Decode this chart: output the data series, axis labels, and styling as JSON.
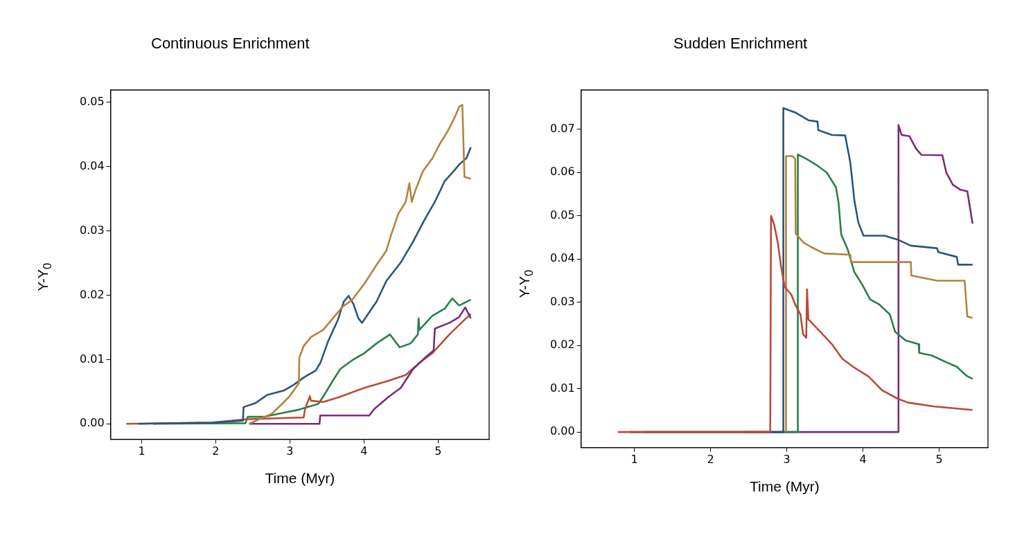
{
  "chart_data": [
    {
      "type": "line",
      "title": "Continuous Enrichment",
      "xlabel": "Time (Myr)",
      "ylabel": "Y-Y$_{0}$",
      "xlim": [
        0.58,
        5.69
      ],
      "ylim": [
        -0.0024,
        0.0519
      ],
      "xticks": [
        1,
        2,
        3,
        4,
        5
      ],
      "yticks": [
        {
          "value": 0,
          "label": "0.00"
        },
        {
          "value": 0.01,
          "label": "0.01"
        },
        {
          "value": 0.02,
          "label": "0.02"
        },
        {
          "value": 0.03,
          "label": "0.03"
        },
        {
          "value": 0.04,
          "label": "0.04"
        },
        {
          "value": 0.05,
          "label": "0.05"
        }
      ],
      "series": [
        {
          "color": "#b5823a",
          "x": [
            2.45,
            2.761,
            2.859,
            2.99,
            3.121,
            3.128,
            3.187,
            3.285,
            3.449,
            3.58,
            3.711,
            3.843,
            4.007,
            4.17,
            4.302,
            4.367,
            4.466,
            4.564,
            4.613,
            4.646,
            4.695,
            4.793,
            4.925,
            5.023,
            5.121,
            5.22,
            5.285,
            5.328,
            5.357,
            5.443
          ],
          "values": [
            0,
            0.0016,
            0.0027,
            0.0042,
            0.0063,
            0.0103,
            0.0121,
            0.0135,
            0.0146,
            0.0164,
            0.0182,
            0.0193,
            0.0218,
            0.0247,
            0.0269,
            0.0294,
            0.0327,
            0.0345,
            0.0374,
            0.0345,
            0.0363,
            0.0392,
            0.0413,
            0.0435,
            0.0453,
            0.0475,
            0.0493,
            0.0496,
            0.0384,
            0.0381
          ]
        },
        {
          "color": "#2b557a",
          "x": [
            0.957,
            1.94,
            2.367,
            2.374,
            2.531,
            2.695,
            2.925,
            3.056,
            3.187,
            3.351,
            3.416,
            3.515,
            3.646,
            3.728,
            3.793,
            3.859,
            3.925,
            3.974,
            4.039,
            4.17,
            4.302,
            4.498,
            4.662,
            4.826,
            4.957,
            5.089,
            5.22,
            5.285,
            5.384,
            5.443
          ],
          "values": [
            0,
            0.0002,
            0.0005,
            0.0026,
            0.0032,
            0.0045,
            0.0052,
            0.0061,
            0.0072,
            0.0083,
            0.0096,
            0.0128,
            0.0161,
            0.019,
            0.0199,
            0.0186,
            0.0164,
            0.0157,
            0.0168,
            0.019,
            0.0222,
            0.0251,
            0.0283,
            0.0319,
            0.0345,
            0.0377,
            0.0394,
            0.0403,
            0.0413,
            0.043
          ]
        },
        {
          "color": "#7d2a7a",
          "x": [
            2.449,
            3.4,
            3.41,
            4.072,
            4.138,
            4.334,
            4.498,
            4.662,
            4.826,
            4.941,
            4.957,
            5.154,
            5.285,
            5.367,
            5.443
          ],
          "values": [
            0,
            0,
            0.0013,
            0.0013,
            0.0023,
            0.0042,
            0.0056,
            0.0085,
            0.0103,
            0.0114,
            0.0148,
            0.0157,
            0.0166,
            0.0181,
            0.0164
          ]
        },
        {
          "color": "#b84a3a",
          "x": [
            0.793,
            1.941,
            2.4,
            3.187,
            3.203,
            3.269,
            3.285,
            3.449,
            3.679,
            4.007,
            4.334,
            4.564,
            4.761,
            4.925,
            5.154,
            5.351,
            5.443
          ],
          "values": [
            0,
            0.0002,
            0.0007,
            0.001,
            0.0022,
            0.0043,
            0.0036,
            0.0034,
            0.0042,
            0.0056,
            0.0067,
            0.0076,
            0.0096,
            0.011,
            0.0139,
            0.0161,
            0.0171
          ]
        },
        {
          "color": "#27804a",
          "x": [
            1.154,
            2.4,
            2.433,
            2.662,
            2.859,
            3.121,
            3.384,
            3.449,
            3.58,
            3.679,
            3.843,
            4.007,
            4.17,
            4.351,
            4.482,
            4.63,
            4.728,
            4.738,
            4.748,
            4.925,
            5.089,
            5.193,
            5.285,
            5.443
          ],
          "values": [
            0,
            0.0001,
            0.0011,
            0.0011,
            0.0016,
            0.0022,
            0.0031,
            0.0042,
            0.0067,
            0.0085,
            0.0099,
            0.011,
            0.0125,
            0.0139,
            0.0119,
            0.0125,
            0.0139,
            0.0164,
            0.0146,
            0.0168,
            0.0179,
            0.0195,
            0.0184,
            0.0193
          ]
        }
      ]
    },
    {
      "type": "line",
      "title": "Sudden Enrichment",
      "xlabel": "Time (Myr)",
      "ylabel": "Y-Y$_{0}$",
      "xlim": [
        0.3,
        5.64
      ],
      "ylim": [
        -0.0036,
        0.0791
      ],
      "xticks": [
        1,
        2,
        3,
        4,
        5
      ],
      "yticks": [
        {
          "value": 0,
          "label": "0.00"
        },
        {
          "value": 0.01,
          "label": "0.01"
        },
        {
          "value": 0.02,
          "label": "0.02"
        },
        {
          "value": 0.03,
          "label": "0.03"
        },
        {
          "value": 0.04,
          "label": "0.04"
        },
        {
          "value": 0.05,
          "label": "0.05"
        },
        {
          "value": 0.06,
          "label": "0.06"
        },
        {
          "value": 0.07,
          "label": "0.07"
        }
      ],
      "series": [
        {
          "color": "#b84a3a",
          "x": [
            0.783,
            2.783,
            2.793,
            2.834,
            2.886,
            2.921,
            2.972,
            3.059,
            3.11,
            3.179,
            3.214,
            3.255,
            3.266,
            3.283,
            3.455,
            3.593,
            3.731,
            3.869,
            4.076,
            4.248,
            4.455,
            4.593,
            4.938,
            5.438
          ],
          "values": [
            0,
            0,
            0.05,
            0.048,
            0.0434,
            0.0387,
            0.0336,
            0.0318,
            0.0295,
            0.0272,
            0.0226,
            0.0218,
            0.033,
            0.0261,
            0.0229,
            0.0203,
            0.0169,
            0.0151,
            0.0128,
            0.0097,
            0.0077,
            0.0068,
            0.0059,
            0.0051
          ]
        },
        {
          "color": "#2b557a",
          "x": [
            0.938,
            2.955,
            2.955,
            3.11,
            3.283,
            3.403,
            3.414,
            3.593,
            3.766,
            3.834,
            3.886,
            3.938,
            4.007,
            4.283,
            4.455,
            4.628,
            4.972,
            4.99,
            5.231,
            5.248,
            5.438
          ],
          "values": [
            0,
            0,
            0.0749,
            0.0739,
            0.0721,
            0.0718,
            0.0698,
            0.0687,
            0.0686,
            0.0623,
            0.0537,
            0.0485,
            0.0454,
            0.0454,
            0.0445,
            0.0431,
            0.0425,
            0.0416,
            0.0405,
            0.0387,
            0.0387
          ]
        },
        {
          "color": "#b5823a",
          "x": [
            2.99,
            2.99,
            3.076,
            3.11,
            3.117,
            3.214,
            3.317,
            3.49,
            3.834,
            3.841,
            4.628,
            4.634,
            4.972,
            5.334,
            5.369,
            5.438
          ],
          "values": [
            0,
            0.0638,
            0.0638,
            0.0632,
            0.0459,
            0.0439,
            0.0428,
            0.0413,
            0.041,
            0.0393,
            0.0393,
            0.0362,
            0.035,
            0.035,
            0.0267,
            0.0264
          ]
        },
        {
          "color": "#27804a",
          "x": [
            1.128,
            3.145,
            3.145,
            3.283,
            3.386,
            3.524,
            3.645,
            3.679,
            3.714,
            3.8,
            3.886,
            3.99,
            4.093,
            4.214,
            4.352,
            4.421,
            4.559,
            4.731,
            4.738,
            4.903,
            5.11,
            5.231,
            5.352,
            5.438
          ],
          "values": [
            0,
            0,
            0.0642,
            0.0629,
            0.0618,
            0.06,
            0.0566,
            0.0531,
            0.0457,
            0.0422,
            0.037,
            0.0341,
            0.0307,
            0.0295,
            0.0272,
            0.0232,
            0.0212,
            0.0203,
            0.0183,
            0.0177,
            0.016,
            0.0151,
            0.0131,
            0.0123
          ]
        },
        {
          "color": "#7d2a7a",
          "x": [
            2.448,
            4.466,
            4.466,
            4.507,
            4.61,
            4.697,
            4.766,
            5.041,
            5.093,
            5.179,
            5.283,
            5.369,
            5.438
          ],
          "values": [
            0,
            0,
            0.071,
            0.0687,
            0.0684,
            0.0655,
            0.0641,
            0.064,
            0.06,
            0.0572,
            0.056,
            0.0557,
            0.0482
          ]
        }
      ]
    }
  ]
}
